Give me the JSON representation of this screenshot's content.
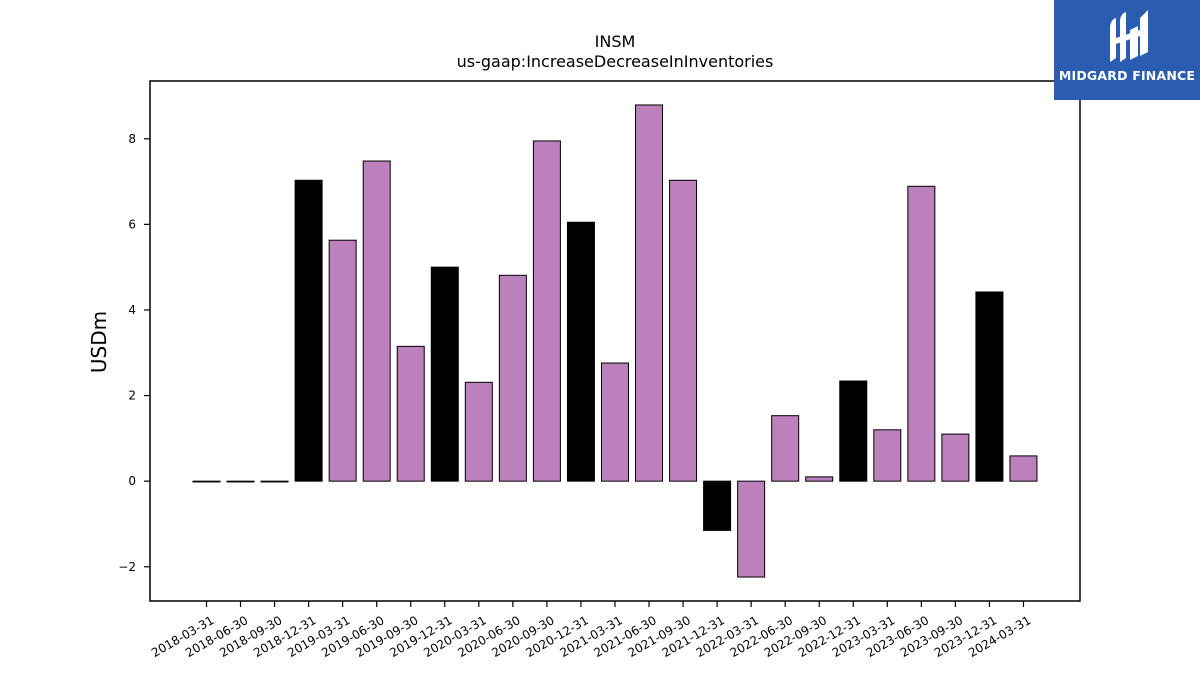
{
  "header": {
    "title": "INSM",
    "subtitle": "us-gaap:IncreaseDecreaseInInventories"
  },
  "logo": {
    "text": "MIDGARD FINANCE",
    "background": "#2a5db0"
  },
  "chart_data": {
    "type": "bar",
    "title": "INSM",
    "subtitle": "us-gaap:IncreaseDecreaseInInventories",
    "xlabel": "",
    "ylabel": "USDm",
    "ylim": [
      -2.8,
      9.35
    ],
    "yticks": [
      -2,
      0,
      2,
      4,
      6,
      8
    ],
    "grid": false,
    "categories": [
      "2018-03-31",
      "2018-06-30",
      "2018-09-30",
      "2018-12-31",
      "2019-03-31",
      "2019-06-30",
      "2019-09-30",
      "2019-12-31",
      "2020-03-31",
      "2020-06-30",
      "2020-09-30",
      "2020-12-31",
      "2021-03-31",
      "2021-06-30",
      "2021-09-30",
      "2021-12-31",
      "2022-03-31",
      "2022-06-30",
      "2022-09-30",
      "2022-12-31",
      "2023-03-31",
      "2023-06-30",
      "2023-09-30",
      "2023-12-31",
      "2024-03-31"
    ],
    "values": [
      0,
      0,
      0,
      7.03,
      5.63,
      7.48,
      3.15,
      5.0,
      2.31,
      4.81,
      7.95,
      6.05,
      2.76,
      8.79,
      7.03,
      -1.15,
      -2.24,
      1.53,
      0.1,
      2.34,
      1.2,
      6.89,
      1.1,
      4.42,
      0.59
    ],
    "bar_colors": [
      "#000000",
      "#000000",
      "#000000",
      "#000000",
      "#bc80bd",
      "#bc80bd",
      "#bc80bd",
      "#000000",
      "#bc80bd",
      "#bc80bd",
      "#bc80bd",
      "#000000",
      "#bc80bd",
      "#bc80bd",
      "#bc80bd",
      "#000000",
      "#bc80bd",
      "#bc80bd",
      "#bc80bd",
      "#000000",
      "#bc80bd",
      "#bc80bd",
      "#bc80bd",
      "#000000",
      "#bc80bd"
    ],
    "colors": {
      "purple": "#bc80bd",
      "black": "#000000"
    }
  }
}
